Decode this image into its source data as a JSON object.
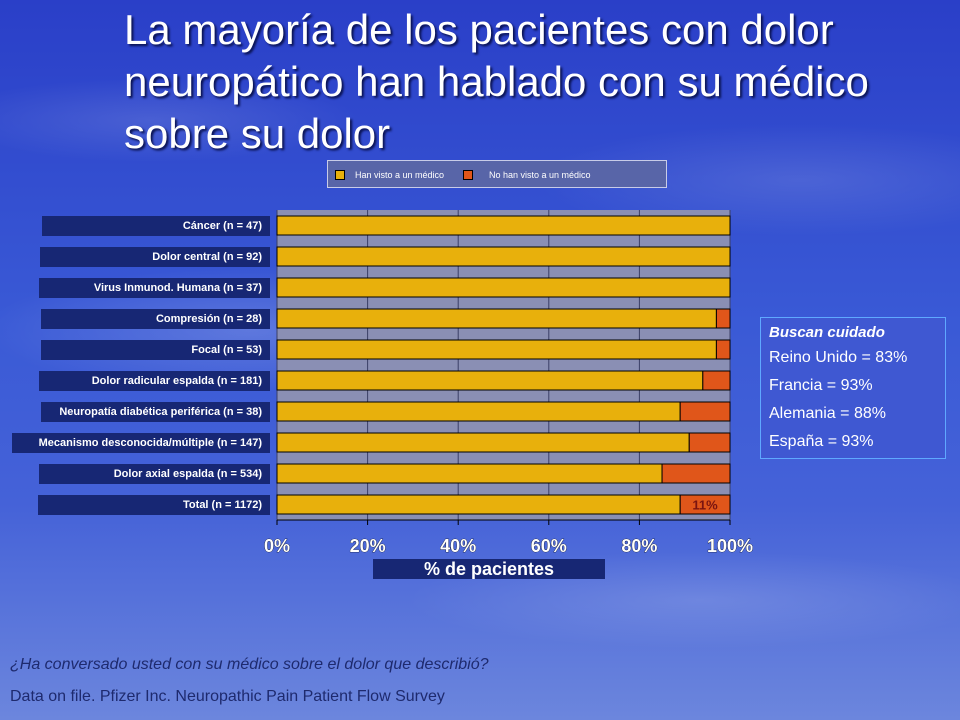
{
  "title": "La mayoría de los pacientes con dolor neuropático han hablado con su médico sobre su dolor",
  "chart_data": {
    "type": "bar",
    "orientation": "horizontal",
    "stacked": true,
    "categories": [
      "Cáncer (n = 47)",
      "Dolor central (n = 92)",
      "Virus Inmunod.  Humana (n = 37)",
      "Compresión (n = 28)",
      "Focal (n = 53)",
      "Dolor radicular espalda (n = 181)",
      "Neuropatía diabética periférica (n = 38)",
      "Mecanismo desconocida/múltiple  (n = 147)",
      "Dolor axial espalda (n = 534)",
      "Total  (n = 1172)"
    ],
    "series": [
      {
        "name": "Han visto a un médico",
        "color": "#e8b00c",
        "values": [
          100,
          100,
          100,
          97,
          97,
          94,
          89,
          91,
          85,
          89
        ]
      },
      {
        "name": "No han visto a un médico",
        "color": "#e0561a",
        "values": [
          0,
          0,
          0,
          3,
          3,
          6,
          11,
          9,
          15,
          11
        ]
      }
    ],
    "data_labels": [
      {
        "category_index": 9,
        "series_index": 1,
        "text": "11%"
      }
    ],
    "xlabel": "% de pacientes",
    "xlim": [
      0,
      100
    ],
    "xticks": [
      "0%",
      "20%",
      "40%",
      "60%",
      "80%",
      "100%"
    ],
    "legend_position": "top"
  },
  "side_box": {
    "heading": "Buscan cuidado",
    "rows": [
      "Reino Unido = 83%",
      "Francia = 93%",
      "Alemania = 88%",
      "España = 93%"
    ]
  },
  "footer": {
    "question": "¿Ha conversado usted con su médico sobre el dolor que describió?",
    "source": "Data on file. Pfizer Inc. Neuropathic Pain Patient Flow Survey"
  }
}
